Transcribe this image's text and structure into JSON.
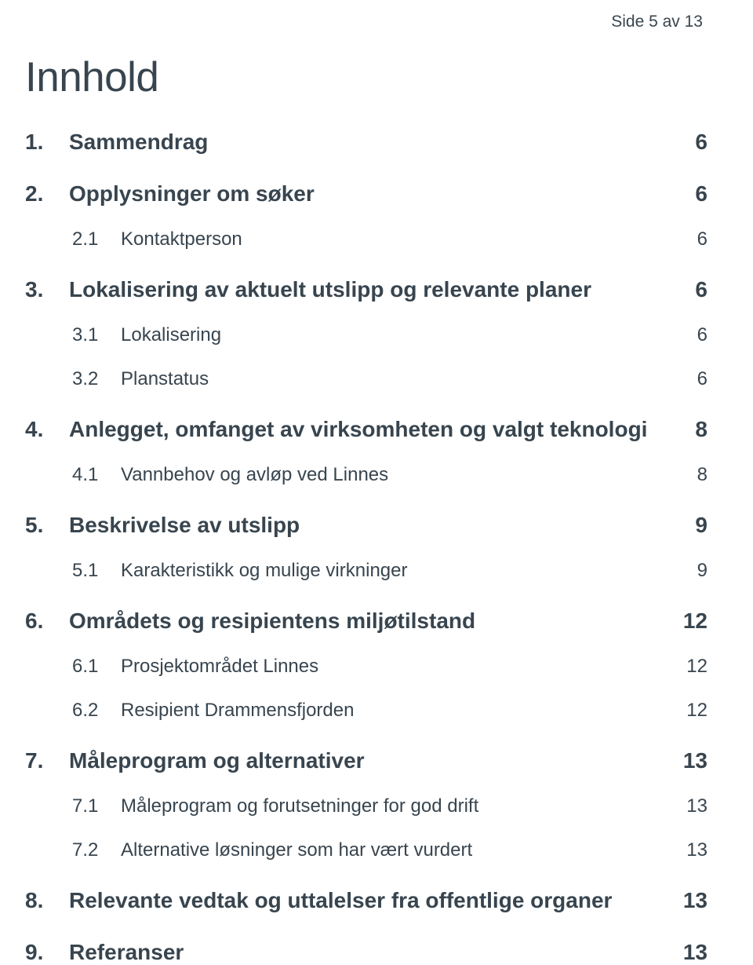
{
  "header": "Side 5 av 13",
  "title": "Innhold",
  "colors": {
    "text": "#38454f",
    "background": "#ffffff"
  },
  "fontsizes": {
    "header": 21,
    "title": 53,
    "lvl1": 28,
    "lvl2": 24
  },
  "toc": [
    {
      "level": 1,
      "num": "1.",
      "label": "Sammendrag",
      "page": "6"
    },
    {
      "level": 1,
      "num": "2.",
      "label": "Opplysninger om søker",
      "page": "6"
    },
    {
      "level": 2,
      "num": "2.1",
      "label": "Kontaktperson",
      "page": "6"
    },
    {
      "level": 1,
      "num": "3.",
      "label": "Lokalisering av aktuelt utslipp og relevante planer",
      "page": "6"
    },
    {
      "level": 2,
      "num": "3.1",
      "label": "Lokalisering",
      "page": "6"
    },
    {
      "level": 2,
      "num": "3.2",
      "label": "Planstatus",
      "page": "6"
    },
    {
      "level": 1,
      "num": "4.",
      "label": "Anlegget, omfanget av virksomheten og valgt teknologi",
      "page": "8"
    },
    {
      "level": 2,
      "num": "4.1",
      "label": "Vannbehov og avløp ved Linnes",
      "page": "8"
    },
    {
      "level": 1,
      "num": "5.",
      "label": "Beskrivelse av utslipp",
      "page": "9"
    },
    {
      "level": 2,
      "num": "5.1",
      "label": "Karakteristikk og mulige virkninger",
      "page": "9"
    },
    {
      "level": 1,
      "num": "6.",
      "label": "Områdets og resipientens miljøtilstand",
      "page": "12"
    },
    {
      "level": 2,
      "num": "6.1",
      "label": "Prosjektområdet Linnes",
      "page": "12"
    },
    {
      "level": 2,
      "num": "6.2",
      "label": "Resipient Drammensfjorden",
      "page": "12"
    },
    {
      "level": 1,
      "num": "7.",
      "label": "Måleprogram og alternativer",
      "page": "13"
    },
    {
      "level": 2,
      "num": "7.1",
      "label": "Måleprogram og forutsetninger for god drift",
      "page": "13"
    },
    {
      "level": 2,
      "num": "7.2",
      "label": "Alternative løsninger som har vært vurdert",
      "page": "13"
    },
    {
      "level": 1,
      "num": "8.",
      "label": "Relevante vedtak og uttalelser fra offentlige organer",
      "page": "13"
    },
    {
      "level": 1,
      "num": "9.",
      "label": "Referanser",
      "page": "13"
    }
  ]
}
